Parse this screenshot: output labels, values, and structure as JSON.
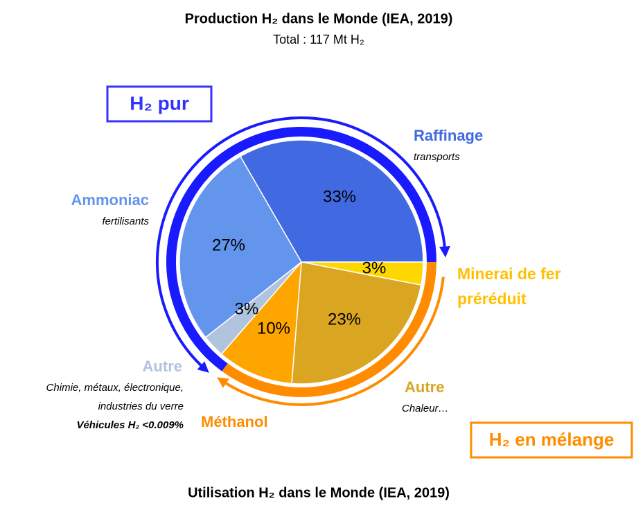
{
  "chart_data": {
    "type": "pie",
    "title": "Production H₂ dans le Monde (IEA, 2019)",
    "subtitle": "Total : 117 Mt H₂",
    "caption": "Utilisation H₂ dans le Monde (IEA, 2019)",
    "groups": [
      "H₂ pur",
      "H₂ en mélange"
    ],
    "categories": [
      "Minerai de fer préréduit",
      "Autre",
      "Méthanol",
      "Autre",
      "Ammoniac",
      "Raffinage"
    ],
    "values": [
      3,
      23,
      10,
      3,
      27,
      33
    ],
    "value_labels": [
      "3%",
      "23%",
      "10%",
      "3%",
      "27%",
      "33%"
    ],
    "colors": [
      "#FFD700",
      "#DAA520",
      "#FFA500",
      "#B0C4DE",
      "#6495ED",
      "#4169E1"
    ],
    "notes": [
      [],
      [
        "Chaleur…"
      ],
      [],
      [
        "Chimie, métaux, électronique,",
        "industries du verre",
        "Véhicules H₂ <0.009%"
      ],
      [
        "fertilisants"
      ],
      [
        "transports"
      ]
    ]
  }
}
